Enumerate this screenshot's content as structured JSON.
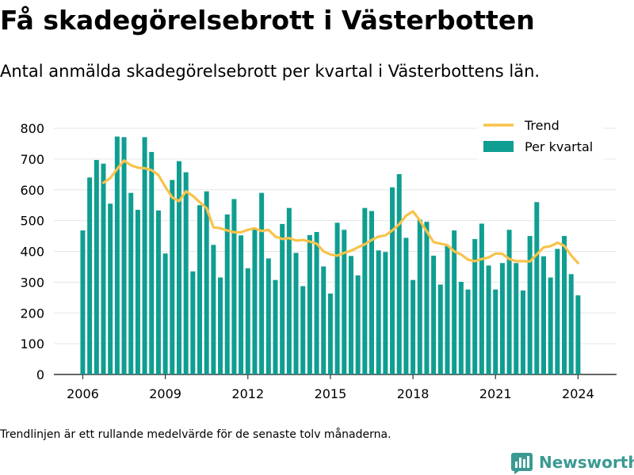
{
  "title": "Få skadegörelsebrott i Västerbotten",
  "subtitle": "Antal anmälda skadegörelsebrott per kvartal i Västerbottens län.",
  "footnote": "Trendlinjen är ett rullande medelvärde för de senaste tolv månaderna.",
  "brand": "Newsworthy",
  "colors": {
    "bar": "#0f9e91",
    "trend": "#f8c34a",
    "axis": "#333333",
    "grid": "#e6e6e6",
    "brand": "#3a9a92"
  },
  "chart_data": {
    "type": "bar",
    "x_unit": "year (quarterly bars)",
    "xlim": [
      2004.95,
      2025.4
    ],
    "ylim": [
      0,
      800
    ],
    "xticks": [
      2006,
      2009,
      2012,
      2015,
      2018,
      2021,
      2024
    ],
    "yticks": [
      0,
      100,
      200,
      300,
      400,
      500,
      600,
      700,
      800
    ],
    "grid": "horizontal",
    "legend_position": "top-right",
    "series": [
      {
        "name": "Per kvartal",
        "type": "bar",
        "x": [
          2006.0,
          2006.25,
          2006.5,
          2006.75,
          2007.0,
          2007.25,
          2007.5,
          2007.75,
          2008.0,
          2008.25,
          2008.5,
          2008.75,
          2009.0,
          2009.25,
          2009.5,
          2009.75,
          2010.0,
          2010.25,
          2010.5,
          2010.75,
          2011.0,
          2011.25,
          2011.5,
          2011.75,
          2012.0,
          2012.25,
          2012.5,
          2012.75,
          2013.0,
          2013.25,
          2013.5,
          2013.75,
          2014.0,
          2014.25,
          2014.5,
          2014.75,
          2015.0,
          2015.25,
          2015.5,
          2015.75,
          2016.0,
          2016.25,
          2016.5,
          2016.75,
          2017.0,
          2017.25,
          2017.5,
          2017.75,
          2018.0,
          2018.25,
          2018.5,
          2018.75,
          2019.0,
          2019.25,
          2019.5,
          2019.75,
          2020.0,
          2020.25,
          2020.5,
          2020.75,
          2021.0,
          2021.25,
          2021.5,
          2021.75,
          2022.0,
          2022.25,
          2022.5,
          2022.75,
          2023.0,
          2023.25,
          2023.5,
          2023.75,
          2024.0
        ],
        "values": [
          468,
          640,
          697,
          685,
          555,
          773,
          771,
          590,
          535,
          771,
          723,
          533,
          393,
          632,
          693,
          657,
          335,
          550,
          595,
          421,
          315,
          520,
          570,
          452,
          345,
          472,
          590,
          377,
          307,
          489,
          541,
          395,
          287,
          453,
          463,
          351,
          263,
          493,
          470,
          385,
          322,
          541,
          531,
          403,
          398,
          608,
          651,
          444,
          307,
          503,
          496,
          386,
          292,
          418,
          468,
          301,
          276,
          440,
          490,
          354,
          276,
          362,
          470,
          362,
          273,
          450,
          560,
          384,
          315,
          408,
          450,
          326,
          257
        ]
      },
      {
        "name": "Trend",
        "type": "line",
        "x": [
          2006.75,
          2007.0,
          2007.25,
          2007.5,
          2007.75,
          2008.0,
          2008.25,
          2008.5,
          2008.75,
          2009.0,
          2009.25,
          2009.5,
          2009.75,
          2010.0,
          2010.25,
          2010.5,
          2010.75,
          2011.0,
          2011.25,
          2011.5,
          2011.75,
          2012.0,
          2012.25,
          2012.5,
          2012.75,
          2013.0,
          2013.25,
          2013.5,
          2013.75,
          2014.0,
          2014.25,
          2014.5,
          2014.75,
          2015.0,
          2015.25,
          2015.5,
          2015.75,
          2016.0,
          2016.25,
          2016.5,
          2016.75,
          2017.0,
          2017.25,
          2017.5,
          2017.75,
          2018.0,
          2018.25,
          2018.5,
          2018.75,
          2019.0,
          2019.25,
          2019.5,
          2019.75,
          2020.0,
          2020.25,
          2020.5,
          2020.75,
          2021.0,
          2021.25,
          2021.5,
          2021.75,
          2022.0,
          2022.25,
          2022.5,
          2022.75,
          2023.0,
          2023.25,
          2023.5,
          2023.75,
          2024.0
        ],
        "values": [
          623,
          638,
          668,
          695,
          680,
          672,
          670,
          664,
          648,
          610,
          575,
          563,
          595,
          580,
          560,
          540,
          478,
          475,
          468,
          462,
          462,
          470,
          475,
          466,
          470,
          448,
          440,
          443,
          435,
          437,
          432,
          425,
          400,
          390,
          386,
          395,
          402,
          413,
          423,
          437,
          448,
          452,
          468,
          488,
          516,
          530,
          500,
          465,
          430,
          425,
          420,
          400,
          390,
          373,
          368,
          375,
          380,
          393,
          392,
          375,
          368,
          368,
          367,
          390,
          413,
          417,
          428,
          418,
          387,
          362
        ]
      }
    ]
  }
}
